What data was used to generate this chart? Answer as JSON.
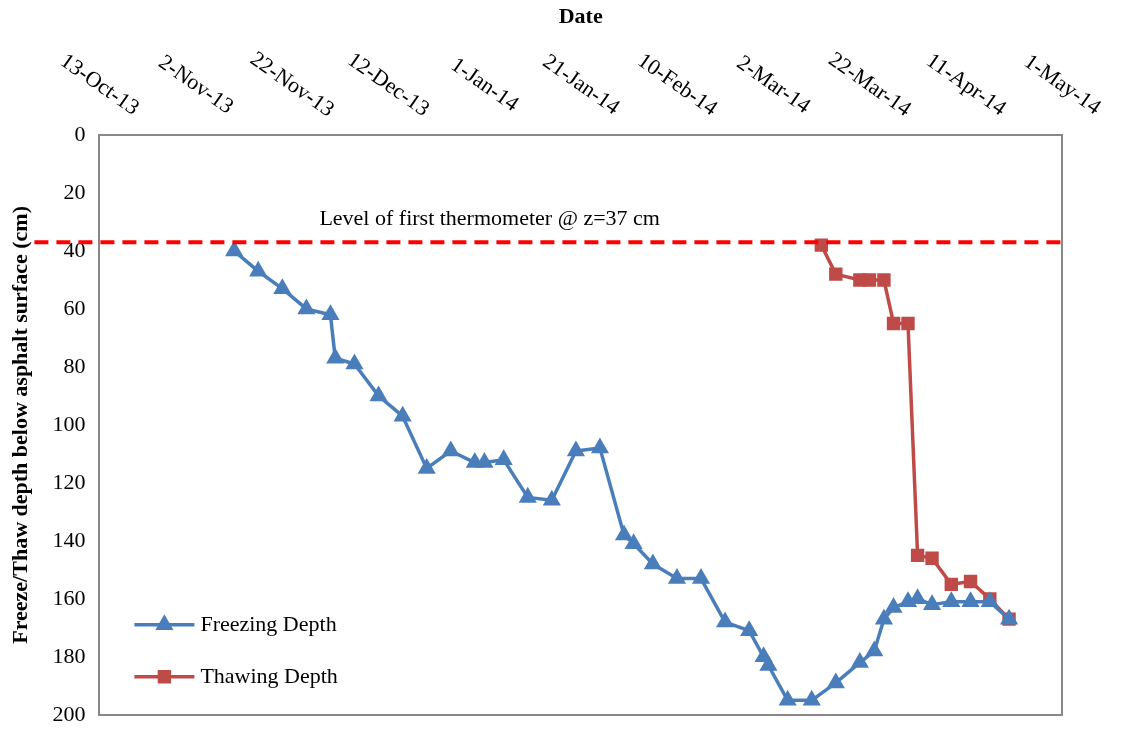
{
  "chart_data": {
    "type": "line",
    "xlabel": "Date",
    "ylabel": "Freeze/Thaw depth below asphalt surface (cm)",
    "xlim": [
      "2013-10-13",
      "2014-05-01"
    ],
    "xticks": [
      {
        "value": "2013-10-13",
        "label": "13-Oct-13"
      },
      {
        "value": "2013-11-02",
        "label": "2-Nov-13"
      },
      {
        "value": "2013-11-22",
        "label": "22-Nov-13"
      },
      {
        "value": "2013-12-12",
        "label": "12-Dec-13"
      },
      {
        "value": "2014-01-01",
        "label": "1-Jan-14"
      },
      {
        "value": "2014-01-21",
        "label": "21-Jan-14"
      },
      {
        "value": "2014-02-10",
        "label": "10-Feb-14"
      },
      {
        "value": "2014-03-02",
        "label": "2-Mar-14"
      },
      {
        "value": "2014-03-22",
        "label": "22-Mar-14"
      },
      {
        "value": "2014-04-11",
        "label": "11-Apr-14"
      },
      {
        "value": "2014-05-01",
        "label": "1-May-14"
      }
    ],
    "ylim": [
      200,
      0
    ],
    "yticks": [
      0,
      20,
      40,
      60,
      80,
      100,
      120,
      140,
      160,
      180,
      200
    ],
    "grid": false,
    "legend": "bottom left",
    "line_style": "solid",
    "series": [
      {
        "name": "Freezing Depth",
        "color": "#4a7ebb",
        "marker": "triangle",
        "x": [
          "2013-11-10",
          "2013-11-15",
          "2013-11-20",
          "2013-11-25",
          "2013-11-30",
          "2013-12-01",
          "2013-12-05",
          "2013-12-10",
          "2013-12-15",
          "2013-12-20",
          "2013-12-25",
          "2013-12-30",
          "2014-01-01",
          "2014-01-05",
          "2014-01-10",
          "2014-01-15",
          "2014-01-20",
          "2014-01-25",
          "2014-01-30",
          "2014-02-01",
          "2014-02-05",
          "2014-02-10",
          "2014-02-15",
          "2014-02-20",
          "2014-02-25",
          "2014-02-28",
          "2014-03-01",
          "2014-03-05",
          "2014-03-10",
          "2014-03-15",
          "2014-03-20",
          "2014-03-23",
          "2014-03-25",
          "2014-03-27",
          "2014-03-30",
          "2014-04-01",
          "2014-04-04",
          "2014-04-08",
          "2014-04-12",
          "2014-04-16",
          "2014-04-20"
        ],
        "values": [
          40,
          47,
          53,
          60,
          62,
          77,
          79,
          90,
          97,
          115,
          109,
          113,
          113,
          112,
          125,
          126,
          109,
          108,
          138,
          141,
          148,
          153,
          153,
          168,
          171,
          180,
          183,
          195,
          195,
          189,
          182,
          178,
          167,
          163,
          161,
          160,
          162,
          161,
          161,
          161,
          167
        ]
      },
      {
        "name": "Thawing Depth",
        "color": "#be4b48",
        "marker": "square",
        "x": [
          "2014-03-12",
          "2014-03-15",
          "2014-03-20",
          "2014-03-22",
          "2014-03-25",
          "2014-03-27",
          "2014-03-30",
          "2014-04-01",
          "2014-04-04",
          "2014-04-08",
          "2014-04-12",
          "2014-04-16",
          "2014-04-20"
        ],
        "values": [
          38,
          48,
          50,
          50,
          50,
          65,
          65,
          145,
          146,
          155,
          154,
          160,
          167
        ]
      }
    ],
    "ref_lines": [
      {
        "axis": "y",
        "value": 37,
        "label": "Level of first thermometer @ z=37 cm",
        "color": "#ff0000",
        "line_style": "dashed"
      }
    ]
  }
}
